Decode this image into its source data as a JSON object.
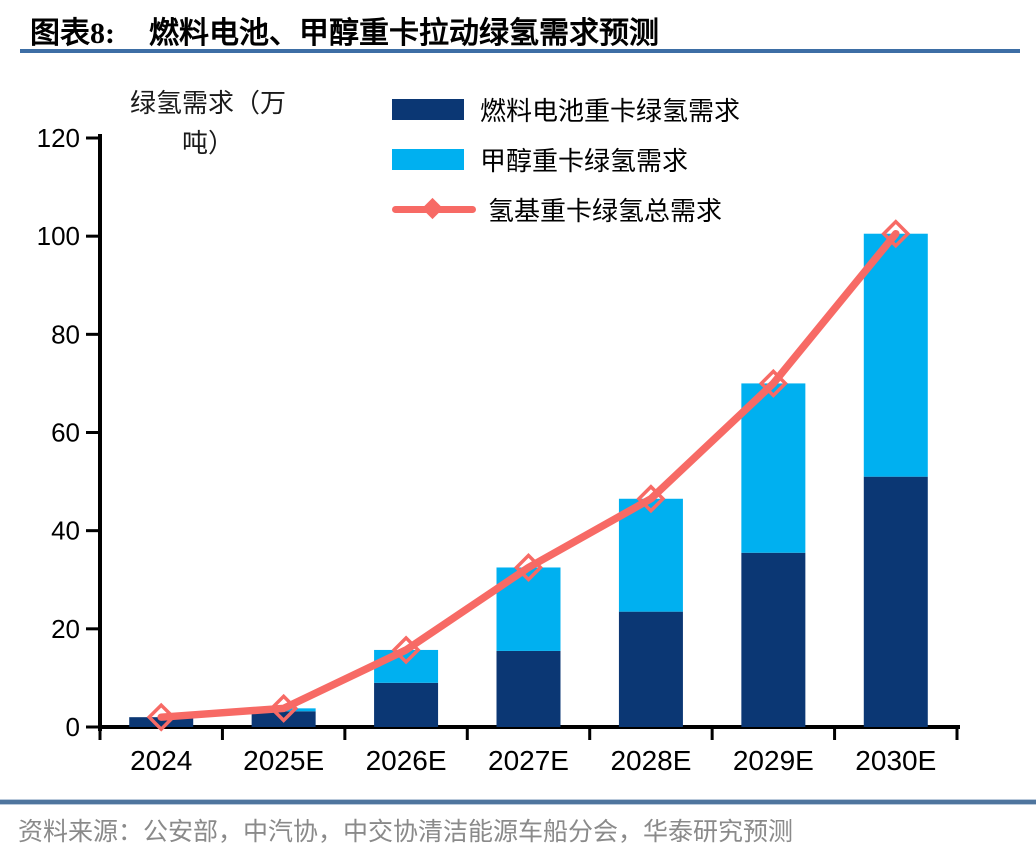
{
  "header": {
    "prefix": "图表8:",
    "title": "燃料电池、甲醇重卡拉动绿氢需求预测"
  },
  "y_axis_title_line1": "绿氢需求（万",
  "y_axis_title_line2": "吨）",
  "legend": {
    "items": [
      {
        "label": "燃料电池重卡绿氢需求",
        "swatch": "bar",
        "color": "#0b3774"
      },
      {
        "label": "甲醇重卡绿氢需求",
        "swatch": "bar",
        "color": "#00b0f0"
      },
      {
        "label": "氢基重卡绿氢总需求",
        "swatch": "line-diamond",
        "color": "#f76a65"
      }
    ]
  },
  "chart_data": {
    "type": "bar",
    "stacked": true,
    "title": "燃料电池、甲醇重卡拉动绿氢需求预测",
    "xlabel": "",
    "ylabel": "绿氢需求（万吨）",
    "categories": [
      "2024",
      "2025E",
      "2026E",
      "2027E",
      "2028E",
      "2029E",
      "2030E"
    ],
    "series": [
      {
        "name": "燃料电池重卡绿氢需求",
        "kind": "bar",
        "color": "#0b3774",
        "values": [
          2,
          3.2,
          9,
          15.5,
          23.5,
          35.5,
          51
        ]
      },
      {
        "name": "甲醇重卡绿氢需求",
        "kind": "bar",
        "color": "#00b0f0",
        "values": [
          0,
          0.6,
          6.7,
          17,
          23,
          34.5,
          49.5
        ]
      },
      {
        "name": "氢基重卡绿氢总需求",
        "kind": "line",
        "marker": "diamond",
        "color": "#f76a65",
        "values": [
          2,
          3.8,
          15.7,
          32.5,
          46.5,
          70,
          100.5
        ]
      }
    ],
    "ylim": [
      0,
      120
    ],
    "yticks": [
      0,
      20,
      40,
      60,
      80,
      100,
      120
    ],
    "grid": false,
    "legend_position": "top-center"
  },
  "footer": {
    "source": "资料来源：公安部，中汽协，中交协清洁能源车船分会，华泰研究预测"
  },
  "colors": {
    "navy": "#0b3774",
    "light_blue": "#00b0f0",
    "red": "#f76a65",
    "title_rule": "#3d6ea5",
    "footer_rule": "#4f759e",
    "axis": "#000000",
    "tick_label": "#000000",
    "source_text": "#8a8a8a"
  }
}
